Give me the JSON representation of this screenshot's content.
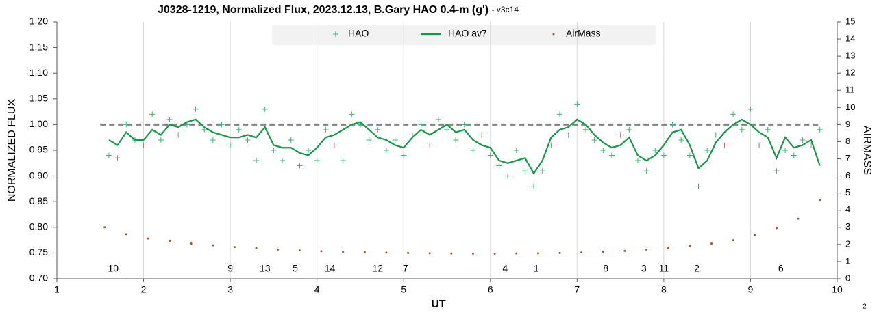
{
  "chart_data": {
    "type": "scatter",
    "title": "J0328-1219, Normalized Flux, 2023.12.13, B.Gary HAO 0.4-m (g')",
    "subtitle": "- v3c14",
    "x_label": "UT",
    "y_label": "NORMALIZED FLUX",
    "y2_label": "AIRMASS",
    "page_number": "2",
    "xlim": [
      1,
      10
    ],
    "xticks": [
      1,
      2,
      3,
      4,
      5,
      6,
      7,
      8,
      9,
      10
    ],
    "ylim": [
      0.7,
      1.2
    ],
    "yticks": [
      {
        "value": 0.7,
        "label": "0.70"
      },
      {
        "value": 0.75,
        "label": "0.75"
      },
      {
        "value": 0.8,
        "label": "0.80"
      },
      {
        "value": 0.85,
        "label": "0.85"
      },
      {
        "value": 0.9,
        "label": "0.90"
      },
      {
        "value": 0.95,
        "label": "0.95"
      },
      {
        "value": 1.0,
        "label": "1.00"
      },
      {
        "value": 1.05,
        "label": "1.05"
      },
      {
        "value": 1.1,
        "label": "1.10"
      },
      {
        "value": 1.15,
        "label": "1.15"
      },
      {
        "value": 1.2,
        "label": "1.20"
      }
    ],
    "y2lim": [
      0,
      15
    ],
    "y2ticks": [
      0,
      1,
      2,
      3,
      4,
      5,
      6,
      7,
      8,
      9,
      10,
      11,
      12,
      13,
      14,
      15
    ],
    "grid": "x",
    "reference_line": {
      "y": 1.0,
      "color": "#808080"
    },
    "x": [
      1.6,
      1.7,
      1.8,
      1.9,
      2.0,
      2.1,
      2.2,
      2.3,
      2.4,
      2.5,
      2.6,
      2.7,
      2.8,
      2.9,
      3.0,
      3.1,
      3.2,
      3.3,
      3.4,
      3.5,
      3.6,
      3.7,
      3.8,
      3.9,
      4.0,
      4.1,
      4.2,
      4.3,
      4.4,
      4.5,
      4.6,
      4.7,
      4.8,
      4.9,
      5.0,
      5.1,
      5.2,
      5.3,
      5.4,
      5.5,
      5.6,
      5.7,
      5.8,
      5.9,
      6.0,
      6.1,
      6.2,
      6.3,
      6.4,
      6.5,
      6.6,
      6.7,
      6.8,
      6.9,
      7.0,
      7.1,
      7.2,
      7.3,
      7.4,
      7.5,
      7.6,
      7.7,
      7.8,
      7.9,
      8.0,
      8.1,
      8.2,
      8.3,
      8.4,
      8.5,
      8.6,
      8.7,
      8.8,
      8.9,
      9.0,
      9.1,
      9.2,
      9.3,
      9.4,
      9.5,
      9.6,
      9.7,
      9.8
    ],
    "series": [
      {
        "name": "HAO",
        "kind": "points",
        "color": "#3cb371",
        "values": [
          0.94,
          0.935,
          1.0,
          0.97,
          0.96,
          1.02,
          0.97,
          1.01,
          0.98,
          1.0,
          1.03,
          0.99,
          0.97,
          1.0,
          0.96,
          0.99,
          0.97,
          0.93,
          1.03,
          0.95,
          0.93,
          0.97,
          0.92,
          0.95,
          0.93,
          0.99,
          0.96,
          0.93,
          1.02,
          1.0,
          0.97,
          0.99,
          0.95,
          0.97,
          0.94,
          0.98,
          1.0,
          0.96,
          1.01,
          0.99,
          0.97,
          1.0,
          0.95,
          0.98,
          0.94,
          0.92,
          0.9,
          0.95,
          0.91,
          0.88,
          0.91,
          0.96,
          1.02,
          0.98,
          1.04,
          0.99,
          0.97,
          0.95,
          0.94,
          0.98,
          0.99,
          0.93,
          0.91,
          0.95,
          0.94,
          1.0,
          0.97,
          0.94,
          0.88,
          0.95,
          0.98,
          0.96,
          1.02,
          0.99,
          1.03,
          0.96,
          0.99,
          0.91,
          0.95,
          0.94,
          0.97,
          0.96,
          0.99
        ]
      },
      {
        "name": "HAO av7",
        "kind": "line",
        "color": "#16964a",
        "values": [
          0.97,
          0.96,
          0.985,
          0.97,
          0.97,
          0.99,
          0.98,
          1.0,
          0.995,
          1.005,
          1.01,
          0.995,
          0.985,
          0.98,
          0.975,
          0.975,
          0.98,
          0.975,
          0.995,
          0.96,
          0.955,
          0.955,
          0.945,
          0.94,
          0.955,
          0.975,
          0.98,
          0.99,
          1.0,
          1.005,
          0.99,
          0.975,
          0.97,
          0.96,
          0.955,
          0.975,
          0.99,
          0.98,
          0.99,
          1.0,
          0.985,
          0.99,
          0.97,
          0.96,
          0.955,
          0.93,
          0.925,
          0.93,
          0.935,
          0.905,
          0.93,
          0.975,
          0.99,
          0.995,
          1.01,
          1.0,
          0.98,
          0.965,
          0.955,
          0.96,
          0.975,
          0.94,
          0.93,
          0.94,
          0.96,
          0.985,
          0.99,
          0.96,
          0.915,
          0.93,
          0.965,
          0.985,
          1.0,
          1.01,
          1.0,
          0.985,
          0.975,
          0.935,
          0.975,
          0.955,
          0.96,
          0.97,
          0.92
        ]
      },
      {
        "name": "AirMass",
        "kind": "dots",
        "color": "#a0522d",
        "axis": "y2",
        "x": [
          1.55,
          1.8,
          2.05,
          2.3,
          2.55,
          2.8,
          3.05,
          3.3,
          3.55,
          3.8,
          4.05,
          4.3,
          4.55,
          4.8,
          5.05,
          5.3,
          5.55,
          5.8,
          6.05,
          6.3,
          6.55,
          6.8,
          7.05,
          7.3,
          7.55,
          7.8,
          8.05,
          8.3,
          8.55,
          8.8,
          9.05,
          9.3,
          9.55,
          9.8
        ],
        "values": [
          3.0,
          2.6,
          2.35,
          2.2,
          2.05,
          1.95,
          1.85,
          1.78,
          1.7,
          1.65,
          1.6,
          1.57,
          1.54,
          1.52,
          1.5,
          1.48,
          1.47,
          1.46,
          1.46,
          1.47,
          1.48,
          1.5,
          1.53,
          1.57,
          1.62,
          1.7,
          1.78,
          1.9,
          2.05,
          2.25,
          2.55,
          2.95,
          3.5,
          4.6
        ]
      }
    ],
    "annotations": [
      {
        "text": "10",
        "x": 1.65
      },
      {
        "text": "9",
        "x": 3.0
      },
      {
        "text": "13",
        "x": 3.4
      },
      {
        "text": "5",
        "x": 3.75
      },
      {
        "text": "14",
        "x": 4.15
      },
      {
        "text": "12",
        "x": 4.7
      },
      {
        "text": "7",
        "x": 5.02
      },
      {
        "text": "4",
        "x": 6.17
      },
      {
        "text": "1",
        "x": 6.53
      },
      {
        "text": "8",
        "x": 7.33
      },
      {
        "text": "3",
        "x": 7.77
      },
      {
        "text": "11",
        "x": 8.0
      },
      {
        "text": "2",
        "x": 8.38
      },
      {
        "text": "6",
        "x": 9.35
      }
    ]
  }
}
